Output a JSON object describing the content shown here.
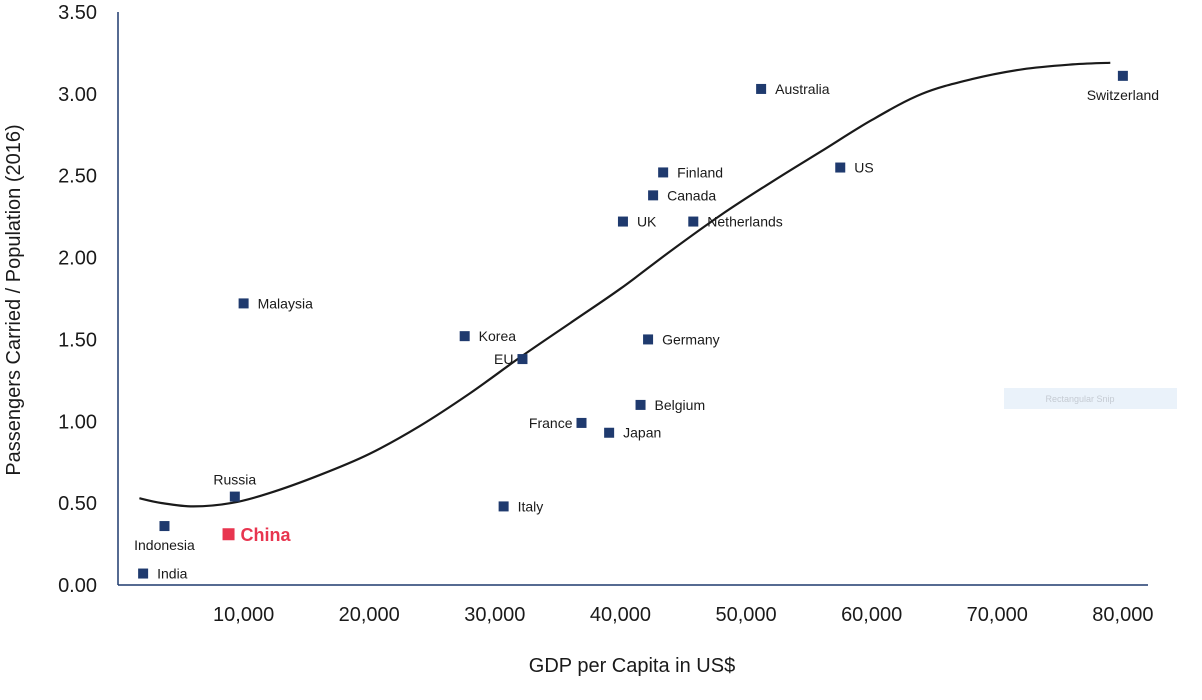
{
  "chart_data": {
    "type": "scatter",
    "xlabel": "GDP per Capita in US$",
    "ylabel": "Passengers Carried  / Population  (2016)",
    "xlim": [
      0,
      82000
    ],
    "ylim": [
      0,
      3.5
    ],
    "x_ticks": [
      "10,000",
      "20,000",
      "30,000",
      "40,000",
      "50,000",
      "60,000",
      "70,000",
      "80,000"
    ],
    "x_tick_values": [
      10000,
      20000,
      30000,
      40000,
      50000,
      60000,
      70000,
      80000
    ],
    "y_ticks": [
      "0.00",
      "0.50",
      "1.00",
      "1.50",
      "2.00",
      "2.50",
      "3.00",
      "3.50"
    ],
    "y_tick_values": [
      0,
      0.5,
      1.0,
      1.5,
      2.0,
      2.5,
      3.0,
      3.5
    ],
    "grid": false,
    "marker_color": "#1f3a6e",
    "highlight_color": "#e8354f",
    "curve_color": "#1a1a1a",
    "points": [
      {
        "label": "India",
        "x": 2000,
        "y": 0.07,
        "label_pos": "right"
      },
      {
        "label": "Indonesia",
        "x": 3700,
        "y": 0.36,
        "label_pos": "below"
      },
      {
        "label": "China",
        "x": 8800,
        "y": 0.31,
        "label_pos": "right",
        "highlight": true
      },
      {
        "label": "Russia",
        "x": 9300,
        "y": 0.54,
        "label_pos": "above"
      },
      {
        "label": "Malaysia",
        "x": 10000,
        "y": 1.72,
        "label_pos": "right"
      },
      {
        "label": "Korea",
        "x": 27600,
        "y": 1.52,
        "label_pos": "right"
      },
      {
        "label": "EU",
        "x": 32200,
        "y": 1.38,
        "label_pos": "left"
      },
      {
        "label": "Italy",
        "x": 30700,
        "y": 0.48,
        "label_pos": "right"
      },
      {
        "label": "France",
        "x": 36900,
        "y": 0.99,
        "label_pos": "left"
      },
      {
        "label": "Japan",
        "x": 39100,
        "y": 0.93,
        "label_pos": "right"
      },
      {
        "label": "Belgium",
        "x": 41600,
        "y": 1.1,
        "label_pos": "right"
      },
      {
        "label": "Germany",
        "x": 42200,
        "y": 1.5,
        "label_pos": "right"
      },
      {
        "label": "UK",
        "x": 40200,
        "y": 2.22,
        "label_pos": "right"
      },
      {
        "label": "Netherlands",
        "x": 45800,
        "y": 2.22,
        "label_pos": "right"
      },
      {
        "label": "Canada",
        "x": 42600,
        "y": 2.38,
        "label_pos": "right"
      },
      {
        "label": "Finland",
        "x": 43400,
        "y": 2.52,
        "label_pos": "right"
      },
      {
        "label": "Australia",
        "x": 51200,
        "y": 3.03,
        "label_pos": "right"
      },
      {
        "label": "US",
        "x": 57500,
        "y": 2.55,
        "label_pos": "right"
      },
      {
        "label": "Switzerland",
        "x": 80000,
        "y": 3.11,
        "label_pos": "below"
      }
    ],
    "trend_curve": [
      [
        1700,
        0.53
      ],
      [
        3500,
        0.5
      ],
      [
        6000,
        0.48
      ],
      [
        9000,
        0.5
      ],
      [
        12000,
        0.56
      ],
      [
        16000,
        0.67
      ],
      [
        20000,
        0.8
      ],
      [
        24000,
        0.97
      ],
      [
        28000,
        1.17
      ],
      [
        32000,
        1.39
      ],
      [
        36000,
        1.6
      ],
      [
        40000,
        1.81
      ],
      [
        44000,
        2.04
      ],
      [
        48000,
        2.26
      ],
      [
        52000,
        2.46
      ],
      [
        56000,
        2.65
      ],
      [
        60000,
        2.84
      ],
      [
        64000,
        3.0
      ],
      [
        68000,
        3.09
      ],
      [
        72000,
        3.15
      ],
      [
        76000,
        3.18
      ],
      [
        79000,
        3.19
      ]
    ]
  },
  "overlay": {
    "snip_label": "Rectangular Snip"
  }
}
